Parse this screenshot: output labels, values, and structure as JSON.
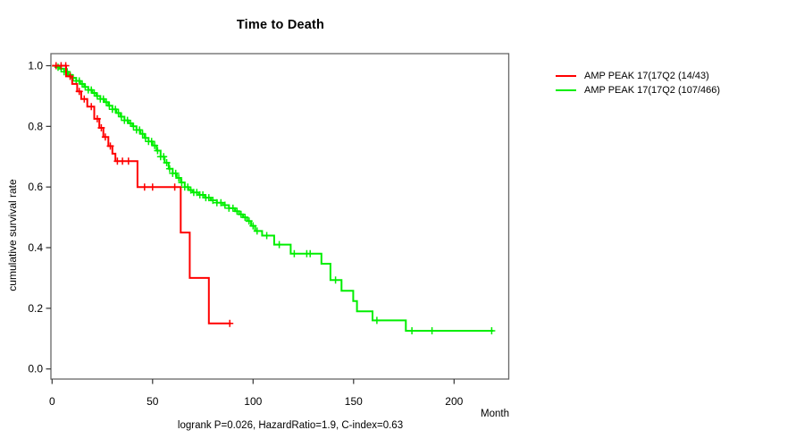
{
  "chart_data": {
    "type": "line",
    "subtype": "kaplan-meier-step",
    "title": "Time to Death",
    "xlabel": "Month",
    "ylabel": "cumulative survival rate",
    "annotation": "logrank P=0.026, HazardRatio=1.9, C-index=0.63",
    "xlim": [
      0,
      227
    ],
    "ylim": [
      0.0,
      1.0
    ],
    "grid": false,
    "legend_position": "right-outside",
    "x_ticks": [
      {
        "v": 0,
        "label": "0"
      },
      {
        "v": 50,
        "label": "50"
      },
      {
        "v": 100,
        "label": "100"
      },
      {
        "v": 150,
        "label": "150"
      },
      {
        "v": 200,
        "label": "200"
      }
    ],
    "y_ticks": [
      {
        "v": 1.0,
        "label": "1.0"
      },
      {
        "v": 0.8,
        "label": "0.8"
      },
      {
        "v": 0.6,
        "label": "0.6"
      },
      {
        "v": 0.4,
        "label": "0.4"
      },
      {
        "v": 0.2,
        "label": "0.2"
      },
      {
        "v": 0.0,
        "label": "0.0"
      }
    ],
    "series": [
      {
        "name": "AMP PEAK 17(17Q2 (14/43)",
        "color": "#ff0000",
        "end_time": 89,
        "steps": [
          [
            0,
            1.0
          ],
          [
            7,
            0.965
          ],
          [
            10,
            0.94
          ],
          [
            12.5,
            0.915
          ],
          [
            14.5,
            0.89
          ],
          [
            17.5,
            0.865
          ],
          [
            21,
            0.825
          ],
          [
            23.5,
            0.795
          ],
          [
            25.5,
            0.765
          ],
          [
            28,
            0.735
          ],
          [
            30,
            0.71
          ],
          [
            31.5,
            0.685
          ],
          [
            42.5,
            0.6
          ],
          [
            64,
            0.45
          ],
          [
            68.5,
            0.3
          ],
          [
            78,
            0.15
          ]
        ],
        "censors": [
          2,
          4.5,
          6.8,
          9,
          13.5,
          16,
          19.5,
          22.5,
          24.5,
          26.5,
          29,
          32.5,
          35,
          38,
          46,
          50,
          61,
          88.4
        ]
      },
      {
        "name": "AMP PEAK 17(17Q2 (107/466)",
        "color": "#00ee00",
        "end_time": 219.5,
        "steps": [
          [
            0,
            1.0
          ],
          [
            2,
            0.995
          ],
          [
            4,
            0.99
          ],
          [
            6,
            0.98
          ],
          [
            8,
            0.97
          ],
          [
            10,
            0.96
          ],
          [
            12,
            0.95
          ],
          [
            14,
            0.94
          ],
          [
            16,
            0.93
          ],
          [
            18,
            0.92
          ],
          [
            20,
            0.91
          ],
          [
            22,
            0.9
          ],
          [
            24,
            0.89
          ],
          [
            26,
            0.88
          ],
          [
            28,
            0.868
          ],
          [
            30,
            0.856
          ],
          [
            32,
            0.844
          ],
          [
            34,
            0.832
          ],
          [
            36,
            0.82
          ],
          [
            38,
            0.81
          ],
          [
            40,
            0.8
          ],
          [
            42,
            0.788
          ],
          [
            44,
            0.775
          ],
          [
            46,
            0.762
          ],
          [
            48,
            0.75
          ],
          [
            50,
            0.737
          ],
          [
            52,
            0.72
          ],
          [
            54,
            0.7
          ],
          [
            56,
            0.68
          ],
          [
            58,
            0.66
          ],
          [
            60,
            0.645
          ],
          [
            62,
            0.63
          ],
          [
            64,
            0.615
          ],
          [
            66,
            0.6
          ],
          [
            68,
            0.59
          ],
          [
            70,
            0.582
          ],
          [
            73,
            0.574
          ],
          [
            76,
            0.565
          ],
          [
            79,
            0.556
          ],
          [
            82,
            0.548
          ],
          [
            85,
            0.54
          ],
          [
            88,
            0.53
          ],
          [
            91,
            0.52
          ],
          [
            93,
            0.51
          ],
          [
            95,
            0.5
          ],
          [
            97,
            0.488
          ],
          [
            99,
            0.472
          ],
          [
            101,
            0.455
          ],
          [
            104.5,
            0.44
          ],
          [
            110.5,
            0.41
          ],
          [
            118.7,
            0.38
          ],
          [
            134,
            0.347
          ],
          [
            138.5,
            0.293
          ],
          [
            144,
            0.258
          ],
          [
            149.8,
            0.224
          ],
          [
            151.7,
            0.19
          ],
          [
            159.4,
            0.16
          ],
          [
            176,
            0.126
          ]
        ],
        "censors": [
          3,
          4.5,
          6,
          7.5,
          9,
          10.5,
          12,
          13.5,
          15,
          16.5,
          18,
          19.5,
          21,
          22.5,
          24,
          25.5,
          27,
          28.5,
          30,
          31.5,
          33,
          34.5,
          36,
          37.5,
          39,
          40.5,
          42,
          43.5,
          45,
          46.5,
          48,
          49.5,
          51,
          52.5,
          54,
          55.5,
          57,
          58.5,
          60,
          61.5,
          63,
          64.5,
          66,
          67.5,
          69,
          70.5,
          72,
          73.5,
          75,
          76.5,
          78,
          80,
          82,
          84,
          86,
          88,
          90,
          92,
          94,
          96,
          98,
          100,
          102,
          106.8,
          113,
          120.5,
          126.7,
          128.4,
          141,
          161.6,
          179,
          189,
          218.7
        ]
      }
    ]
  },
  "legend": {
    "items": [
      {
        "label": "AMP PEAK 17(17Q2 (14/43)",
        "color": "#ff0000"
      },
      {
        "label": "AMP PEAK 17(17Q2 (107/466)",
        "color": "#00ee00"
      }
    ]
  },
  "colors": {
    "axis_box": "#666666",
    "tick": "#333333",
    "text": "#000000"
  }
}
